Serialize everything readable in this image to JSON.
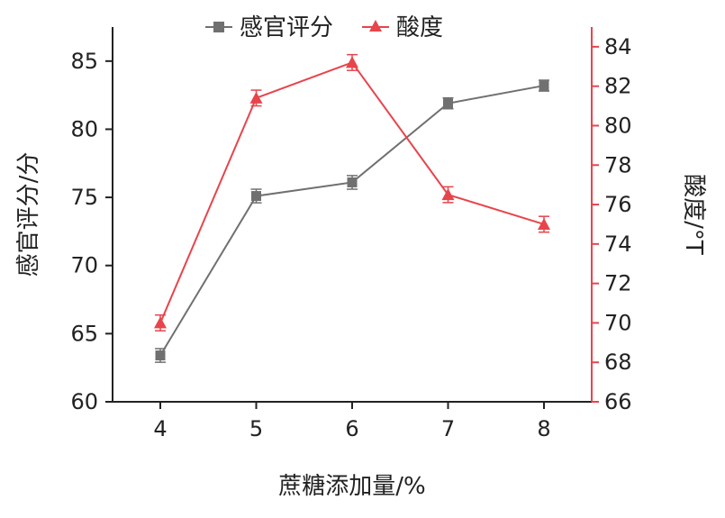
{
  "chart_data": {
    "type": "line",
    "x": [
      4,
      5,
      6,
      7,
      8
    ],
    "xlabel": "蔗糖添加量/%",
    "xticks": [
      "4",
      "5",
      "6",
      "7",
      "8"
    ],
    "axes": {
      "left": {
        "label": "感官评分/分",
        "ylim": [
          60,
          87.5
        ],
        "ticks": [
          "60",
          "65",
          "70",
          "75",
          "80",
          "85"
        ],
        "color": "#222222"
      },
      "right": {
        "label": "酸度/°T",
        "ylim": [
          66,
          85
        ],
        "ticks": [
          "66",
          "68",
          "70",
          "72",
          "74",
          "76",
          "78",
          "80",
          "82",
          "84"
        ],
        "color": "#e8444c"
      }
    },
    "series": [
      {
        "name": "感官评分",
        "axis": "left",
        "color": "#707070",
        "marker": "square",
        "values": [
          63.4,
          75.1,
          76.1,
          81.9,
          83.2
        ],
        "errors": [
          0.5,
          0.5,
          0.5,
          0.4,
          0.4
        ]
      },
      {
        "name": "酸度",
        "axis": "right",
        "color": "#e8444c",
        "marker": "triangle",
        "values": [
          70.0,
          81.4,
          83.2,
          76.5,
          75.0
        ],
        "errors": [
          0.4,
          0.4,
          0.4,
          0.4,
          0.4
        ]
      }
    ],
    "legend": "top-center",
    "grid": false
  }
}
